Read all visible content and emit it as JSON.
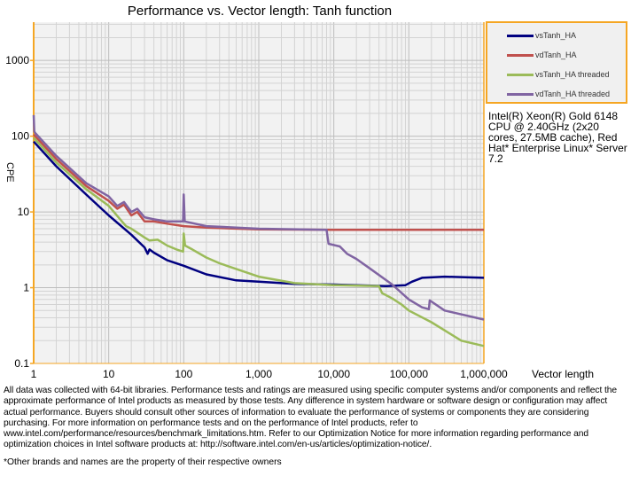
{
  "chart_data": {
    "type": "line",
    "title": "Performance vs. Vector length: Tanh function",
    "xlabel": "Vector length",
    "ylabel": "CPE",
    "xscale": "log",
    "yscale": "log",
    "xlim": [
      1,
      1000000
    ],
    "ylim": [
      0.1,
      3200
    ],
    "grid": true,
    "legend": "top-right",
    "x_tick_labels": [
      "1",
      "10",
      "100",
      "1,000",
      "10,000",
      "100,000",
      "1,000,000"
    ],
    "y_tick_labels": [
      "0.1",
      "1",
      "10",
      "100",
      "1000"
    ],
    "x_ticks": [
      1,
      10,
      100,
      1000,
      10000,
      100000,
      1000000
    ],
    "y_ticks": [
      0.1,
      1,
      10,
      100,
      1000
    ],
    "series": [
      {
        "name": "vsTanh_HA",
        "color": "#000080",
        "x": [
          1,
          2,
          5,
          10,
          20,
          30,
          33,
          35,
          40,
          60,
          100,
          200,
          500,
          1000,
          3000,
          10000,
          50000,
          90000,
          110000,
          150000,
          300000,
          1000000
        ],
        "y": [
          85,
          40,
          17,
          9,
          5,
          3.4,
          2.8,
          3.2,
          2.9,
          2.3,
          1.95,
          1.5,
          1.25,
          1.2,
          1.12,
          1.1,
          1.05,
          1.08,
          1.2,
          1.35,
          1.4,
          1.35
        ]
      },
      {
        "name": "vdTanh_HA",
        "color": "#c0504d",
        "x": [
          1,
          2,
          5,
          10,
          13,
          16,
          20,
          24,
          30,
          40,
          60,
          100,
          200,
          1000,
          10000,
          100000,
          1000000
        ],
        "y": [
          105,
          50,
          22,
          14,
          11,
          12.5,
          9,
          10,
          7.5,
          7.5,
          7,
          6.5,
          6.2,
          5.9,
          5.8,
          5.8,
          5.8
        ]
      },
      {
        "name": "vsTanh_HA threaded",
        "color": "#9bbb59",
        "x": [
          1,
          2,
          5,
          10,
          15,
          17,
          20,
          30,
          35,
          45,
          60,
          80,
          98,
          100,
          104,
          130,
          200,
          300,
          1000,
          3000,
          10000,
          40000,
          44000,
          60000,
          80000,
          100000,
          200000,
          500000,
          1000000
        ],
        "y": [
          95,
          45,
          20,
          12,
          7.5,
          6.5,
          6,
          4.6,
          4.2,
          4.3,
          3.6,
          3.2,
          3,
          5.2,
          3.6,
          3.2,
          2.5,
          2.1,
          1.4,
          1.15,
          1.08,
          1.05,
          0.85,
          0.72,
          0.6,
          0.5,
          0.35,
          0.2,
          0.17
        ]
      },
      {
        "name": "vdTanh_HA threaded",
        "color": "#8064a2",
        "x": [
          1,
          1.02,
          1.05,
          2,
          5,
          10,
          13,
          16,
          20,
          24,
          30,
          40,
          60,
          98,
          100,
          103,
          200,
          1000,
          8000,
          8500,
          12000,
          15000,
          20000,
          30000,
          60000,
          100000,
          150000,
          185000,
          190000,
          300000,
          1000000
        ],
        "y": [
          190,
          115,
          110,
          55,
          24,
          16,
          12,
          13.5,
          10,
          11,
          8.5,
          8,
          7.5,
          7.5,
          17,
          7.5,
          6.5,
          6,
          5.8,
          3.8,
          3.5,
          2.8,
          2.4,
          1.8,
          1.1,
          0.7,
          0.55,
          0.52,
          0.68,
          0.5,
          0.38
        ]
      }
    ]
  },
  "cpu_note": "Intel(R) Xeon(R) Gold 6148 CPU @ 2.40GHz (2x20 cores, 27.5MB cache), Red Hat* Enterprise Linux* Server 7.2",
  "footer": "All data was collected with 64-bit libraries. Performance tests and ratings are measured using specific computer systems and/or components and reflect the approximate performance of Intel products as measured by those tests. Any difference in system hardware or software design or configuration may affect actual performance. Buyers should consult other sources of information to evaluate the performance of systems or components they are considering purchasing. For more information on performance tests and on the performance of Intel products, refer to www.intel.com/performance/resources/benchmark_limitations.htm. Refer to our Optimization Notice for more information regarding performance and optimization choices in Intel software products at: http://software.intel.com/en-us/articles/optimization-notice/.",
  "footnote": "*Other brands and names are the property of their respective owners"
}
